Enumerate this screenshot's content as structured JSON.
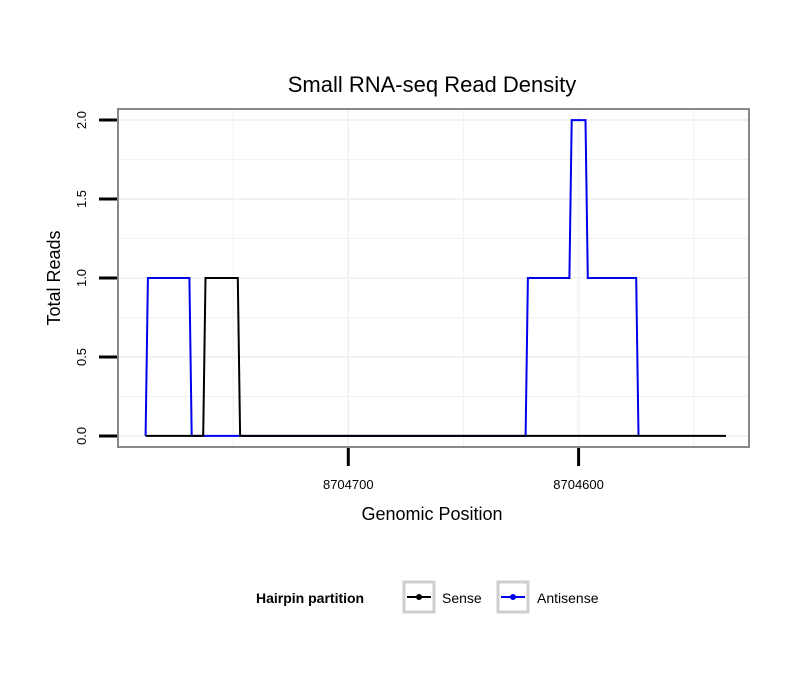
{
  "chart_data": {
    "type": "line",
    "title": "Small RNA-seq Read Density",
    "xlabel": "Genomic Position",
    "ylabel": "Total Reads",
    "x_reversed": true,
    "xlim": [
      8704800,
      8704526
    ],
    "ylim": [
      -0.07,
      2.07
    ],
    "x_ticks": [
      8704700,
      8704600
    ],
    "x_tick_labels": [
      "8704700",
      "8704600"
    ],
    "y_ticks": [
      0,
      0.5,
      1,
      1.5,
      2
    ],
    "y_tick_labels": [
      "0.0",
      "0.5",
      "1.0",
      "1.5",
      "2.0"
    ],
    "grid": true,
    "colors": {
      "sense": "#000000",
      "antisense": "#0000ee",
      "panel_border": "#888888",
      "grid": "#f2f2f2"
    },
    "series": [
      {
        "name": "Antisense",
        "color": "#0000ee",
        "x": [
          8704788,
          8704787,
          8704769,
          8704768,
          8704764,
          8704763,
          8704749,
          8704748,
          8704623,
          8704622,
          8704604,
          8704603,
          8704597,
          8704596,
          8704590,
          8704589,
          8704575,
          8704574
        ],
        "y": [
          0,
          1,
          1,
          0,
          0,
          0,
          0,
          0,
          0,
          1,
          1,
          2,
          2,
          1,
          1,
          1,
          1,
          0
        ]
      },
      {
        "name": "Sense",
        "color": "#000000",
        "x": [
          8704788,
          8704763,
          8704762,
          8704748,
          8704747,
          8704536
        ],
        "y": [
          0,
          0,
          1,
          1,
          0,
          0
        ]
      }
    ],
    "legend": {
      "title": "Hairpin partition",
      "position": "bottom",
      "entries": [
        {
          "label": "Sense",
          "color": "#000000"
        },
        {
          "label": "Antisense",
          "color": "#0000ee"
        }
      ]
    }
  }
}
